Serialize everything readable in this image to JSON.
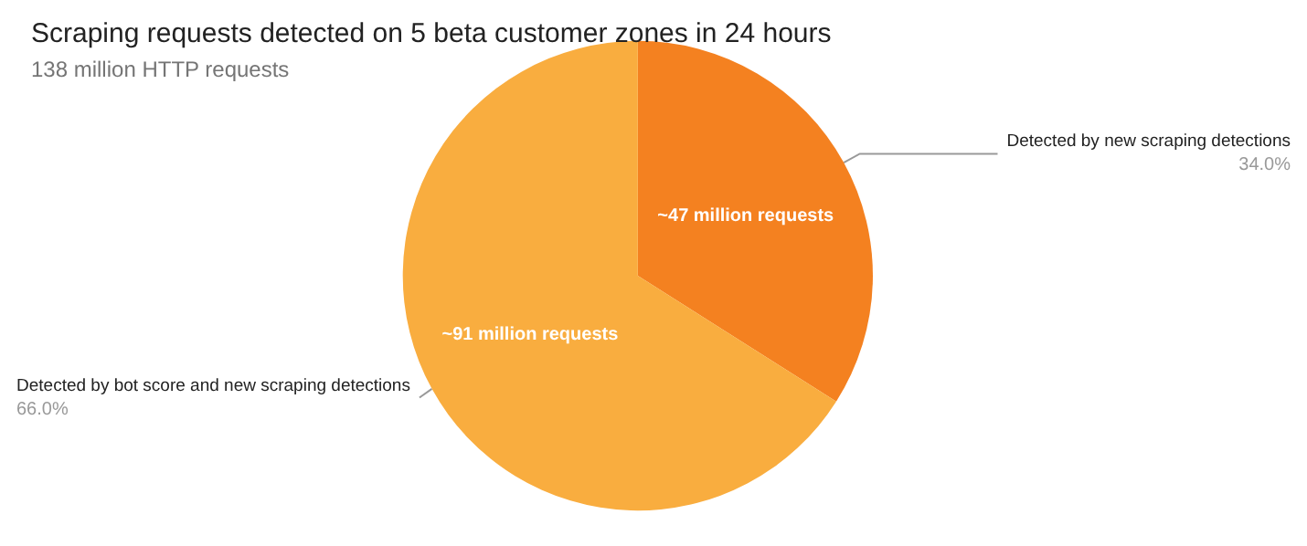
{
  "chart_data": {
    "type": "pie",
    "title": "Scraping requests detected on 5 beta customer zones in 24 hours",
    "subtitle": "138 million HTTP requests",
    "categories": [
      "Detected by new scraping detections",
      "Detected by bot score and new scraping detections"
    ],
    "values": [
      34,
      66
    ],
    "colors": [
      "#f48120",
      "#f9ad3f"
    ],
    "value_labels": [
      "34.0%",
      "66.0%"
    ],
    "annotations": [
      {
        "text": "~47 million requests",
        "x": "Detected by new scraping detections"
      },
      {
        "text": "~91 million requests",
        "x": "Detected by bot score and new scraping detections"
      }
    ],
    "legend": false
  }
}
